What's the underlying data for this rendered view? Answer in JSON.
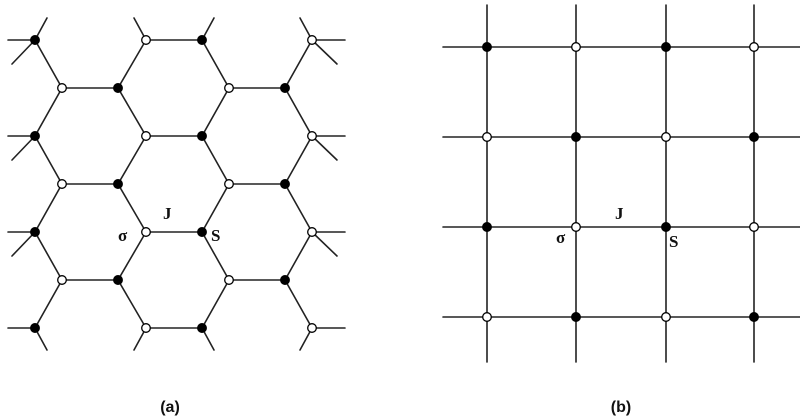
{
  "panels": [
    {
      "id": "a",
      "lattice": "honeycomb",
      "caption": "(a)",
      "labels": {
        "sigma": "σ",
        "coupling": "J",
        "spin": "S"
      }
    },
    {
      "id": "b",
      "lattice": "square",
      "caption": "(b)",
      "labels": {
        "sigma": "σ",
        "coupling": "J",
        "spin": "S"
      }
    }
  ],
  "colors": {
    "edge": "#222222",
    "filled_site": "#000000",
    "open_site_fill": "#ffffff",
    "site_stroke": "#000000"
  }
}
